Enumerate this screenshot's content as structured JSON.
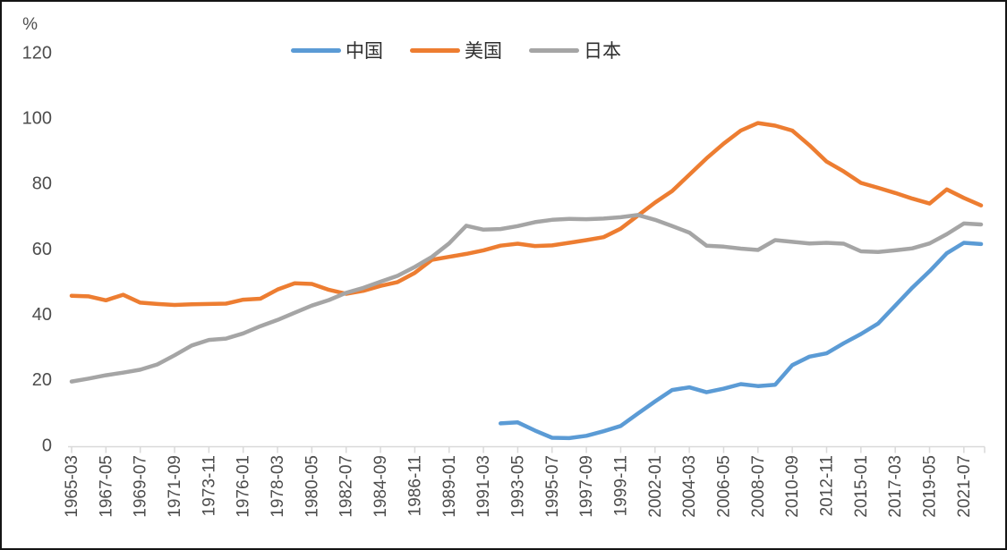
{
  "chart_data": {
    "type": "line",
    "title": "",
    "grid": false,
    "background": "#ffffff",
    "legend_position": "top-center",
    "y_axis": {
      "unit_label": "%",
      "min": 0,
      "max": 120,
      "ticks": [
        0,
        20,
        40,
        60,
        80,
        100,
        120
      ]
    },
    "x_label_interval_months": 26,
    "x_labels": [
      "1965-03",
      "1967-05",
      "1969-07",
      "1971-09",
      "1973-11",
      "1976-01",
      "1978-03",
      "1980-05",
      "1982-07",
      "1984-09",
      "1986-11",
      "1989-01",
      "1991-03",
      "1993-05",
      "1995-07",
      "1997-09",
      "1999-11",
      "2002-01",
      "2004-03",
      "2006-05",
      "2008-07",
      "2010-09",
      "2012-11",
      "2015-01",
      "2017-03",
      "2019-05",
      "2021-07"
    ],
    "x": [
      "1965-03",
      "1966-04",
      "1967-05",
      "1968-06",
      "1969-07",
      "1970-08",
      "1971-09",
      "1972-10",
      "1973-11",
      "1974-12",
      "1976-01",
      "1977-02",
      "1978-03",
      "1979-04",
      "1980-05",
      "1981-06",
      "1982-07",
      "1983-08",
      "1984-09",
      "1985-10",
      "1986-11",
      "1987-12",
      "1989-01",
      "1990-02",
      "1991-03",
      "1992-04",
      "1993-05",
      "1994-06",
      "1995-07",
      "1996-08",
      "1997-09",
      "1998-10",
      "1999-11",
      "2000-12",
      "2002-01",
      "2003-02",
      "2004-03",
      "2005-04",
      "2006-05",
      "2007-06",
      "2008-07",
      "2009-08",
      "2010-09",
      "2011-10",
      "2012-11",
      "2013-12",
      "2015-01",
      "2016-02",
      "2017-03",
      "2018-04",
      "2019-05",
      "2020-06",
      "2021-07",
      "2022-08"
    ],
    "series": [
      {
        "id": "china",
        "name": "中国",
        "color": "#5B9BD5",
        "values": [
          null,
          null,
          null,
          null,
          null,
          null,
          null,
          null,
          null,
          null,
          null,
          null,
          null,
          null,
          null,
          null,
          null,
          null,
          null,
          null,
          null,
          null,
          null,
          null,
          null,
          7.0,
          7.3,
          4.8,
          2.6,
          2.5,
          3.2,
          4.6,
          6.2,
          10.0,
          13.7,
          17.2,
          18.0,
          16.5,
          17.6,
          19.0,
          18.4,
          18.8,
          24.8,
          27.4,
          28.4,
          31.5,
          34.3,
          37.5,
          43.0,
          48.5,
          53.5,
          59.0,
          62.2,
          61.8
        ]
      },
      {
        "id": "us",
        "name": "美国",
        "color": "#ED7D31",
        "values": [
          46.0,
          45.8,
          44.6,
          46.3,
          43.9,
          43.5,
          43.2,
          43.4,
          43.5,
          43.6,
          44.8,
          45.1,
          47.9,
          49.8,
          49.6,
          47.8,
          46.6,
          47.5,
          49.0,
          50.2,
          53.0,
          57.0,
          57.9,
          58.8,
          59.9,
          61.3,
          61.9,
          61.2,
          61.4,
          62.2,
          63.0,
          63.9,
          66.5,
          70.5,
          74.5,
          78.0,
          83.0,
          88.0,
          92.5,
          96.5,
          98.8,
          98.0,
          96.5,
          92.0,
          87.0,
          84.0,
          80.5,
          79.0,
          77.4,
          75.7,
          74.2,
          78.5,
          75.9,
          73.6
        ]
      },
      {
        "id": "japan",
        "name": "日本",
        "color": "#A5A5A5",
        "values": [
          19.8,
          20.7,
          21.7,
          22.5,
          23.4,
          25.0,
          27.8,
          30.8,
          32.5,
          32.9,
          34.5,
          36.7,
          38.6,
          40.8,
          43.0,
          44.7,
          46.9,
          48.4,
          50.3,
          52.1,
          54.8,
          57.9,
          62.0,
          67.4,
          66.2,
          66.4,
          67.3,
          68.5,
          69.2,
          69.5,
          69.4,
          69.6,
          70.0,
          70.7,
          69.2,
          67.3,
          65.3,
          61.3,
          61.0,
          60.4,
          60.0,
          63.0,
          62.5,
          62.0,
          62.2,
          61.9,
          59.6,
          59.4,
          59.9,
          60.5,
          62.0,
          64.8,
          68.1,
          67.8
        ]
      }
    ],
    "axis_colors": {
      "axis_line": "#D9D9D9",
      "tick_mark": "#D9D9D9",
      "tick_label": "#4d4d4d",
      "unit_label": "#4d4d4d"
    }
  }
}
